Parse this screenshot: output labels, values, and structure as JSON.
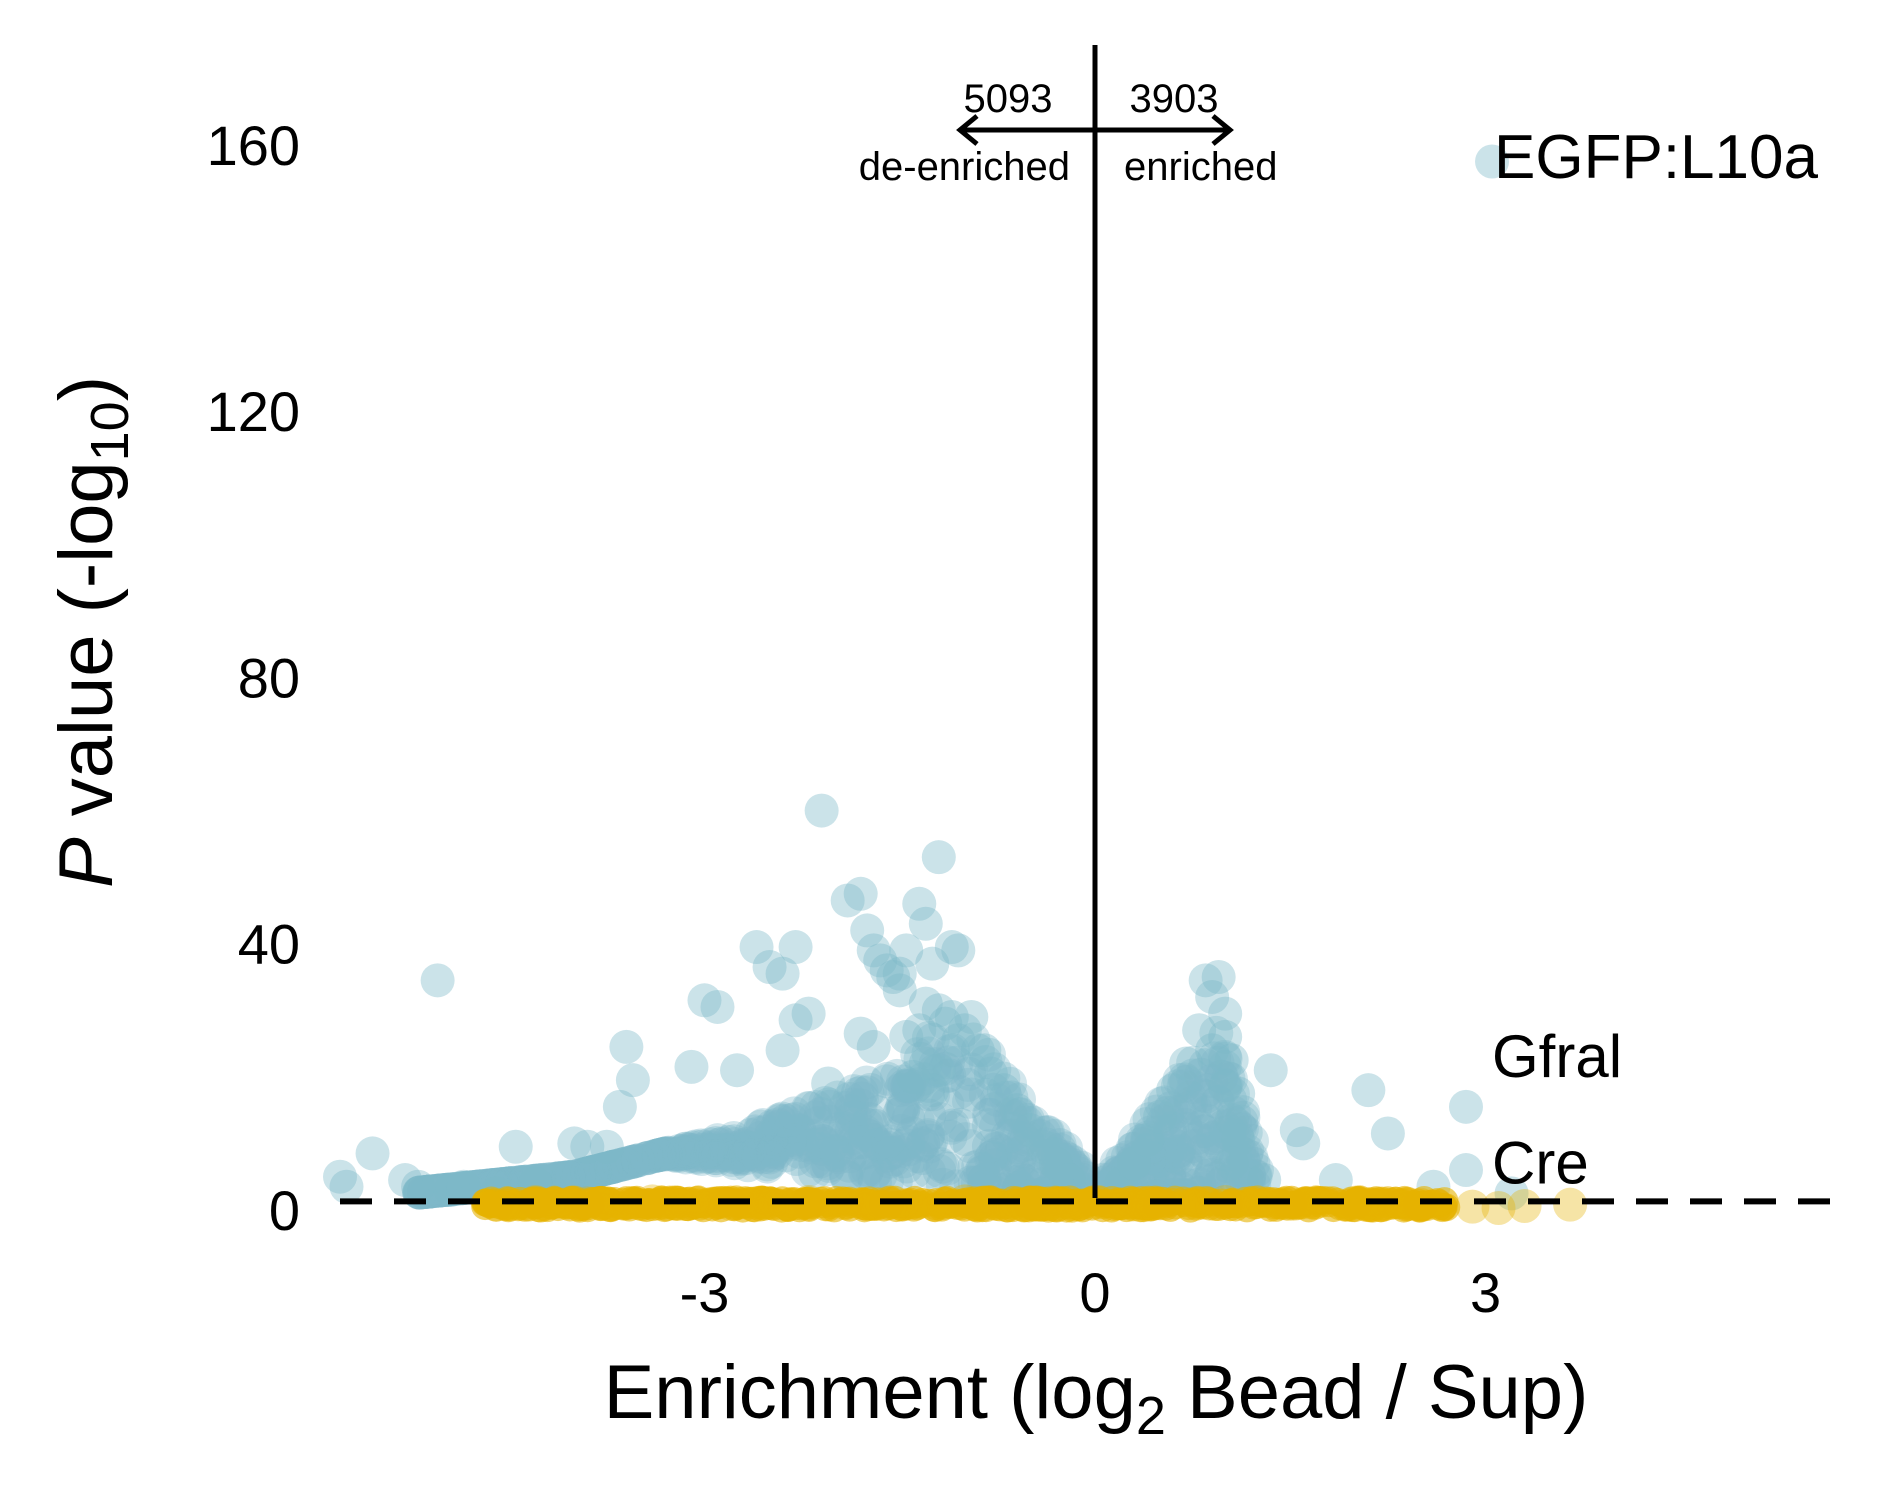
{
  "chart_data": {
    "type": "scatter",
    "title": "EGFP:L10a",
    "xlabel": "Enrichment (log2 Bead / Sup)",
    "ylabel": "P value (-log10)",
    "xlabel_parts": {
      "prefix": "Enrichment (log",
      "sub": "2",
      "suffix": " Bead / Sup)"
    },
    "ylabel_parts": {
      "italic": "P",
      "prefix": " value (-log",
      "sub": "10",
      "suffix": ")"
    },
    "xlim": [
      -5.8,
      5.8
    ],
    "ylim": [
      0,
      175
    ],
    "xticks": [
      -3,
      0,
      3
    ],
    "xtick_labels": [
      "-3",
      "0",
      "3"
    ],
    "yticks": [
      0,
      40,
      80,
      120,
      160
    ],
    "ytick_labels": [
      "0",
      "40",
      "80",
      "120",
      "160"
    ],
    "grid": false,
    "colors": {
      "significant": "#7db8c8",
      "not_significant": "#e6b300",
      "axis": "#000000"
    },
    "threshold_line": {
      "y": 1.3,
      "style": "dashed"
    },
    "center_line": {
      "x": 0
    },
    "direction_annotations": {
      "left_count": "5093",
      "left_label": "de-enriched",
      "right_count": "3903",
      "right_label": "enriched"
    },
    "gene_labels": [
      {
        "text": "Gfral",
        "x": 3.05,
        "y": 23
      },
      {
        "text": "Cre",
        "x": 3.05,
        "y": 7
      }
    ],
    "series": [
      {
        "color": "#7db8c8",
        "points": [
          [
            -5.8,
            5
          ],
          [
            -5.75,
            3.5
          ],
          [
            -5.55,
            8.5
          ],
          [
            -5.2,
            3.5
          ],
          [
            -5.3,
            4.5
          ],
          [
            -5.05,
            34.5
          ],
          [
            -4.95,
            3
          ],
          [
            -4.85,
            3.5
          ],
          [
            -4.6,
            2.5
          ],
          [
            -4.45,
            9.5
          ],
          [
            -4.3,
            4
          ],
          [
            -4.0,
            10
          ],
          [
            -3.9,
            9.5
          ],
          [
            -3.75,
            9.5
          ],
          [
            -3.6,
            24.5
          ],
          [
            -3.55,
            19.5
          ],
          [
            -3.65,
            15.5
          ],
          [
            -3.1,
            21.5
          ],
          [
            -3.0,
            31.5
          ],
          [
            -2.9,
            30.5
          ],
          [
            -2.75,
            21
          ],
          [
            -2.6,
            39.5
          ],
          [
            -2.5,
            36.5
          ],
          [
            -2.4,
            35.5
          ],
          [
            -2.3,
            39.5
          ],
          [
            -2.4,
            24
          ],
          [
            -2.3,
            28.5
          ],
          [
            -2.2,
            29.5
          ],
          [
            -2.1,
            60
          ],
          [
            -2.05,
            19
          ],
          [
            -1.9,
            46.5
          ],
          [
            -1.8,
            47.5
          ],
          [
            -1.7,
            39
          ],
          [
            -1.75,
            42
          ],
          [
            -1.65,
            37.5
          ],
          [
            -1.6,
            36
          ],
          [
            -1.55,
            35
          ],
          [
            -1.5,
            35.5
          ],
          [
            -1.45,
            39
          ],
          [
            -1.35,
            46
          ],
          [
            -1.3,
            43
          ],
          [
            -1.25,
            37
          ],
          [
            -1.2,
            53
          ],
          [
            -1.1,
            39.5
          ],
          [
            -1.05,
            39
          ],
          [
            -1.8,
            26.5
          ],
          [
            -1.7,
            24.5
          ],
          [
            -1.5,
            33
          ],
          [
            -1.45,
            26
          ],
          [
            -1.35,
            27
          ],
          [
            -1.3,
            31
          ],
          [
            -1.2,
            30
          ],
          [
            -1.15,
            28
          ],
          [
            -1.1,
            29
          ],
          [
            -1.05,
            25.5
          ],
          [
            -1.0,
            27
          ],
          [
            -0.95,
            29
          ],
          [
            -0.9,
            24
          ],
          [
            -0.85,
            24
          ],
          [
            -0.8,
            20.5
          ],
          [
            -0.7,
            18
          ],
          [
            -0.6,
            15
          ],
          [
            -0.5,
            12
          ],
          [
            -0.4,
            9.5
          ],
          [
            -0.3,
            7
          ],
          [
            -0.2,
            4.5
          ],
          [
            -1.3,
            22
          ],
          [
            -1.2,
            21
          ],
          [
            -1.25,
            18
          ],
          [
            -1.4,
            20
          ],
          [
            0.2,
            4
          ],
          [
            0.3,
            7
          ],
          [
            0.4,
            10.5
          ],
          [
            0.5,
            14
          ],
          [
            0.6,
            18
          ],
          [
            0.7,
            22
          ],
          [
            0.8,
            27
          ],
          [
            0.9,
            32
          ],
          [
            0.85,
            34.5
          ],
          [
            0.95,
            35
          ],
          [
            1.0,
            29.5
          ],
          [
            1.0,
            26
          ],
          [
            0.9,
            24
          ],
          [
            1.05,
            22.5
          ],
          [
            1.0,
            18.5
          ],
          [
            1.1,
            17.5
          ],
          [
            1.05,
            13.5
          ],
          [
            1.1,
            10.5
          ],
          [
            1.05,
            7
          ],
          [
            1.3,
            4.5
          ],
          [
            1.35,
            21
          ],
          [
            1.6,
            10
          ],
          [
            1.55,
            12
          ],
          [
            1.85,
            4.5
          ],
          [
            2.1,
            18
          ],
          [
            2.25,
            11.5
          ],
          [
            2.85,
            15.5
          ],
          [
            2.85,
            6
          ],
          [
            2.6,
            3.5
          ],
          [
            3.2,
            2.5
          ],
          [
            3.05,
            157.5
          ]
        ],
        "band": {
          "lower_x_range": [
            -5.2,
            -0.05
          ],
          "upper_x_range": [
            0.05,
            1.25
          ],
          "note": "dense cloud of points fills the volcano-shaped region between the two arms"
        }
      },
      {
        "color": "#e6b300",
        "points": [
          [
            -4.6,
            0.8
          ],
          [
            -4.3,
            1.2
          ],
          [
            -3.9,
            1.0
          ],
          [
            -3.4,
            1.3
          ],
          [
            -2.8,
            0.9
          ],
          [
            -2.2,
            1.2
          ],
          [
            -1.6,
            1.0
          ],
          [
            -1.0,
            1.3
          ],
          [
            -0.5,
            1.1
          ],
          [
            0.0,
            1.2
          ],
          [
            0.5,
            1.0
          ],
          [
            1.0,
            1.2
          ],
          [
            1.5,
            0.9
          ],
          [
            2.0,
            1.1
          ],
          [
            2.5,
            0.8
          ],
          [
            2.9,
            0.5
          ],
          [
            3.1,
            0.3
          ],
          [
            3.3,
            0.6
          ],
          [
            3.65,
            0.8
          ]
        ],
        "band": {
          "x_range": [
            -4.7,
            2.7
          ],
          "y_range": [
            0.2,
            1.6
          ]
        }
      }
    ]
  }
}
